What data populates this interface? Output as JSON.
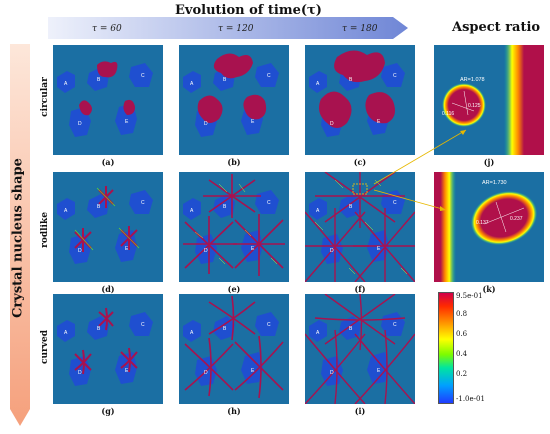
{
  "title": "Evolution of time(τ)",
  "aspect_title": "Aspect ratio",
  "vertical_title": "Crystal nucleus shape",
  "time_labels": [
    "τ = 60",
    "τ = 120",
    "τ = 180"
  ],
  "row_labels": [
    "circular",
    "rodlike",
    "curved"
  ],
  "panel_captions": [
    "(a)",
    "(b)",
    "(c)",
    "(d)",
    "(e)",
    "(f)",
    "(g)",
    "(h)",
    "(i)",
    "(j)",
    "(k)"
  ],
  "grain_labels": [
    "A",
    "B",
    "C",
    "D",
    "E"
  ],
  "zoom_j": {
    "ar": "AR=1.078",
    "len1": "0.116",
    "len2": "0.125"
  },
  "zoom_k": {
    "ar": "AR=1.730",
    "len1": "0.137",
    "len2": "0.237"
  },
  "colorbar": {
    "max": "9.5e-01",
    "ticks": [
      "0.8",
      "0.6",
      "0.4",
      "0.2"
    ],
    "min": "-1.0e-01"
  },
  "colors": {
    "background": "#1b6fa3",
    "grain": "#1f4fd0",
    "dendrite": "#a8124f"
  }
}
